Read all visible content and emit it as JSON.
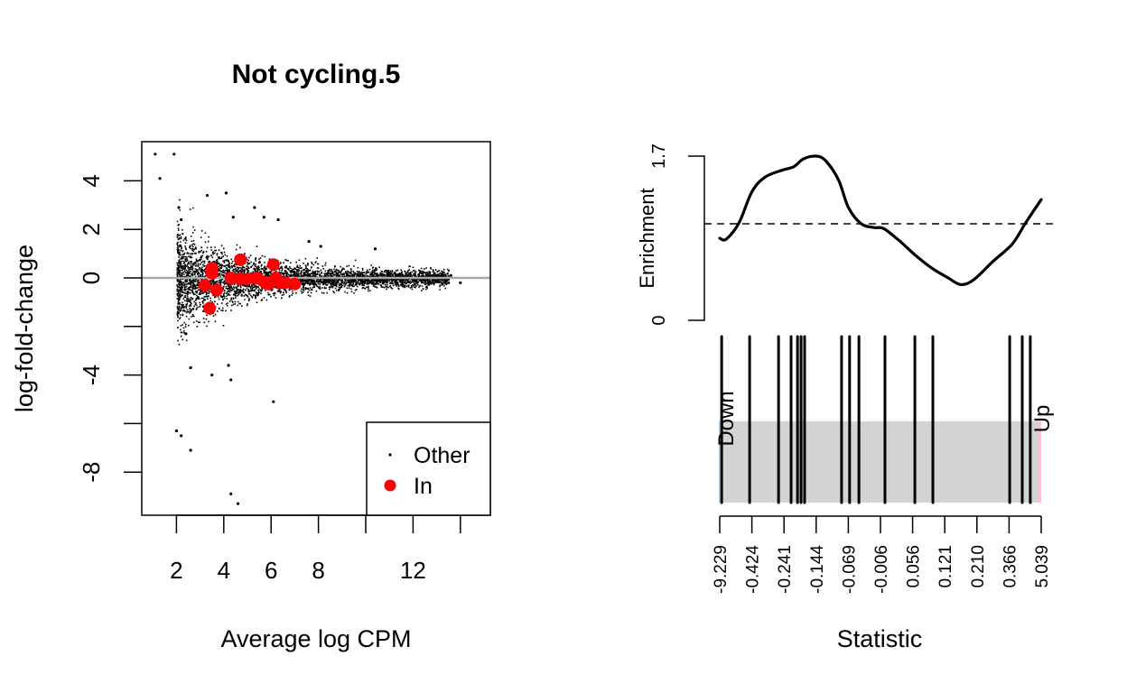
{
  "chart_data": [
    {
      "type": "scatter",
      "title": "Not cycling.5",
      "xlabel": "Average log CPM",
      "ylabel": "log-fold-change",
      "xlim": [
        0.5,
        15.3
      ],
      "ylim": [
        -9.8,
        5.6
      ],
      "xticks": [
        2,
        4,
        6,
        8,
        10,
        12,
        14
      ],
      "xtick_labels": [
        "2",
        "4",
        "6",
        "8",
        "",
        "12",
        ""
      ],
      "yticks": [
        4,
        2,
        0,
        -2,
        -4,
        -6,
        -8
      ],
      "ytick_labels": [
        "4",
        "2",
        "0",
        "",
        "-4",
        "",
        "-8"
      ],
      "reference_line": {
        "y": 0,
        "color": "#a0a0a0"
      },
      "legend": {
        "position": "bottom-right",
        "entries": [
          {
            "label": "Other",
            "color": "#000000",
            "marker": "small-dot"
          },
          {
            "label": "In",
            "color": "#ff0000",
            "marker": "large-dot"
          }
        ]
      },
      "series": [
        {
          "name": "Other",
          "color": "#000000",
          "note": "dense cloud of ~15000 genes centered at 0, wider at low CPM; outliers listed",
          "outliers": [
            {
              "x": 1.1,
              "y": 5.1
            },
            {
              "x": 1.9,
              "y": 5.1
            },
            {
              "x": 1.3,
              "y": 4.1
            },
            {
              "x": 2.1,
              "y": 2.9
            },
            {
              "x": 2.2,
              "y": 2.4
            },
            {
              "x": 3.3,
              "y": 3.4
            },
            {
              "x": 4.1,
              "y": 3.5
            },
            {
              "x": 4.4,
              "y": 2.5
            },
            {
              "x": 5.3,
              "y": 2.9
            },
            {
              "x": 5.7,
              "y": 2.5
            },
            {
              "x": 6.3,
              "y": 2.4
            },
            {
              "x": 7.6,
              "y": 1.5
            },
            {
              "x": 8.1,
              "y": 1.3
            },
            {
              "x": 10.4,
              "y": 1.2
            },
            {
              "x": 13.6,
              "y": 0.1
            },
            {
              "x": 14.0,
              "y": -0.2
            },
            {
              "x": 2.6,
              "y": -3.7
            },
            {
              "x": 2.4,
              "y": -2.3
            },
            {
              "x": 3.5,
              "y": -4.0
            },
            {
              "x": 4.2,
              "y": -3.6
            },
            {
              "x": 4.3,
              "y": -4.2
            },
            {
              "x": 6.1,
              "y": -5.1
            },
            {
              "x": 2.0,
              "y": -6.3
            },
            {
              "x": 2.2,
              "y": -6.5
            },
            {
              "x": 2.6,
              "y": -7.1
            },
            {
              "x": 4.3,
              "y": -8.9
            },
            {
              "x": 4.6,
              "y": -9.3
            }
          ]
        },
        {
          "name": "In",
          "color": "#ff0000",
          "points": [
            {
              "x": 3.5,
              "y": 0.4
            },
            {
              "x": 3.5,
              "y": 0.2
            },
            {
              "x": 3.2,
              "y": -0.3
            },
            {
              "x": 3.7,
              "y": -0.5
            },
            {
              "x": 3.4,
              "y": -1.25
            },
            {
              "x": 4.7,
              "y": 0.75
            },
            {
              "x": 6.1,
              "y": 0.55
            },
            {
              "x": 4.3,
              "y": 0.0
            },
            {
              "x": 4.7,
              "y": -0.05
            },
            {
              "x": 5.0,
              "y": -0.05
            },
            {
              "x": 5.4,
              "y": 0.0
            },
            {
              "x": 5.7,
              "y": -0.15
            },
            {
              "x": 5.9,
              "y": -0.25
            },
            {
              "x": 6.2,
              "y": 0.0
            },
            {
              "x": 6.4,
              "y": -0.2
            },
            {
              "x": 6.6,
              "y": -0.2
            },
            {
              "x": 7.0,
              "y": -0.25
            }
          ]
        }
      ]
    },
    {
      "type": "line",
      "title": "",
      "ylabel": "Enrichment",
      "ylim": [
        0,
        1.7
      ],
      "ytick_labels": [
        "0",
        "1.7"
      ],
      "reference_line": {
        "y": 1.0,
        "style": "dashed"
      },
      "series": [
        {
          "name": "Enrichment",
          "color": "#000000",
          "values_by_position": [
            {
              "p": 0.0,
              "y": 0.85
            },
            {
              "p": 0.02,
              "y": 0.84
            },
            {
              "p": 0.06,
              "y": 1.01
            },
            {
              "p": 0.1,
              "y": 1.33
            },
            {
              "p": 0.14,
              "y": 1.48
            },
            {
              "p": 0.19,
              "y": 1.55
            },
            {
              "p": 0.23,
              "y": 1.59
            },
            {
              "p": 0.26,
              "y": 1.67
            },
            {
              "p": 0.3,
              "y": 1.7
            },
            {
              "p": 0.33,
              "y": 1.65
            },
            {
              "p": 0.37,
              "y": 1.45
            },
            {
              "p": 0.4,
              "y": 1.17
            },
            {
              "p": 0.44,
              "y": 1.0
            },
            {
              "p": 0.48,
              "y": 0.96
            },
            {
              "p": 0.51,
              "y": 0.95
            },
            {
              "p": 0.56,
              "y": 0.82
            },
            {
              "p": 0.61,
              "y": 0.67
            },
            {
              "p": 0.66,
              "y": 0.54
            },
            {
              "p": 0.71,
              "y": 0.44
            },
            {
              "p": 0.75,
              "y": 0.37
            },
            {
              "p": 0.79,
              "y": 0.42
            },
            {
              "p": 0.85,
              "y": 0.61
            },
            {
              "p": 0.91,
              "y": 0.79
            },
            {
              "p": 0.95,
              "y": 1.0
            },
            {
              "p": 1.0,
              "y": 1.25
            }
          ]
        }
      ]
    },
    {
      "type": "barcode",
      "xlabel": "Statistic",
      "xtick_labels": [
        "-9.229",
        "-0.424",
        "-0.241",
        "-0.144",
        "-0.069",
        "-0.006",
        "0.056",
        "0.121",
        "0.210",
        "0.366",
        "5.039"
      ],
      "labels": {
        "down": "Down",
        "up": "Up"
      },
      "shade_color": "#d3d3d3",
      "down_color": "#add8e6",
      "up_color": "#ffc0cb",
      "shade_height_fraction": 0.49,
      "gene_positions": [
        0.006,
        0.093,
        0.183,
        0.222,
        0.242,
        0.253,
        0.264,
        0.379,
        0.404,
        0.433,
        0.514,
        0.607,
        0.663,
        0.902,
        0.941,
        0.966
      ]
    }
  ]
}
